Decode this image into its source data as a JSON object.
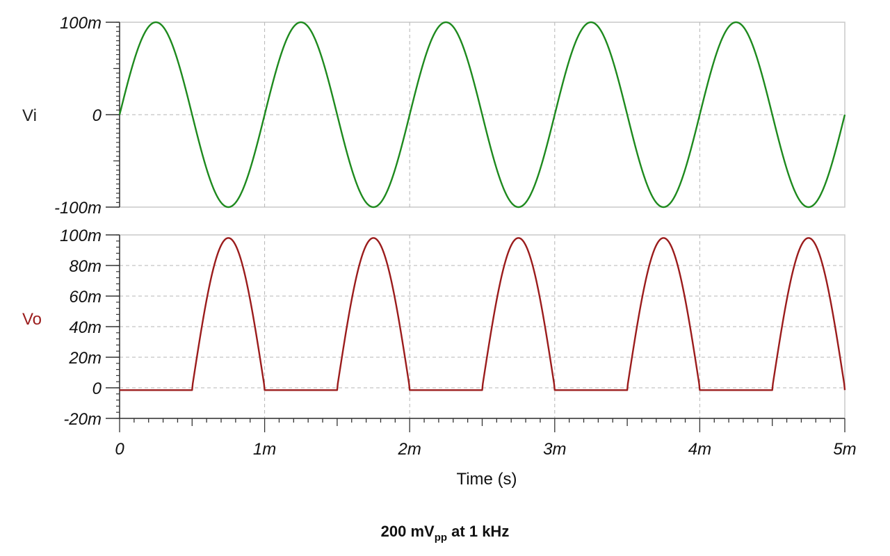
{
  "chart_data": {
    "type": "line",
    "title": "200 mVpp at 1 kHz",
    "title_parts": {
      "main": "200 mV",
      "sub": "pp",
      "rest": " at 1 kHz"
    },
    "xlabel": "Time (s)",
    "x_range": [
      0,
      0.005
    ],
    "x_ticks": [
      {
        "value": 0,
        "label": "0"
      },
      {
        "value": 0.001,
        "label": "1m"
      },
      {
        "value": 0.002,
        "label": "2m"
      },
      {
        "value": 0.003,
        "label": "3m"
      },
      {
        "value": 0.004,
        "label": "4m"
      },
      {
        "value": 0.005,
        "label": "5m"
      }
    ],
    "grid": true,
    "panels": [
      {
        "name": "Vi",
        "ylabel": "Vi",
        "color": "#1e8a1e",
        "label_color": "#222222",
        "ylim": [
          -0.1,
          0.1
        ],
        "y_ticks": [
          {
            "value": 0.1,
            "label": "100m"
          },
          {
            "value": 0,
            "label": "0"
          },
          {
            "value": -0.1,
            "label": "-100m"
          }
        ],
        "series": {
          "kind": "sine",
          "amplitude": 0.1,
          "frequency_hz": 1000,
          "offset": 0,
          "description": "Input sine 100 mV amplitude, 1 kHz, 5 full cycles from 0 to 5 ms"
        }
      },
      {
        "name": "Vo",
        "ylabel": "Vo",
        "color": "#9b1c1c",
        "label_color": "#9b1c1c",
        "ylim": [
          -0.02,
          0.1
        ],
        "y_ticks": [
          {
            "value": 0.1,
            "label": "100m"
          },
          {
            "value": 0.08,
            "label": "80m"
          },
          {
            "value": 0.06,
            "label": "60m"
          },
          {
            "value": 0.04,
            "label": "40m"
          },
          {
            "value": 0.02,
            "label": "20m"
          },
          {
            "value": 0,
            "label": "0"
          },
          {
            "value": -0.02,
            "label": "-20m"
          }
        ],
        "series": {
          "kind": "half-wave-rectified-inverted",
          "peak": 0.098,
          "off_level": -0.0015,
          "description": "Conducts on negative half of Vi (0.5-1.0 ms, 1.5-2.0 ms, ...), peak ~98 mV at 0.75, 1.75, 2.75, 3.75, 4.75 ms; ~-1.5 mV otherwise"
        }
      }
    ]
  }
}
